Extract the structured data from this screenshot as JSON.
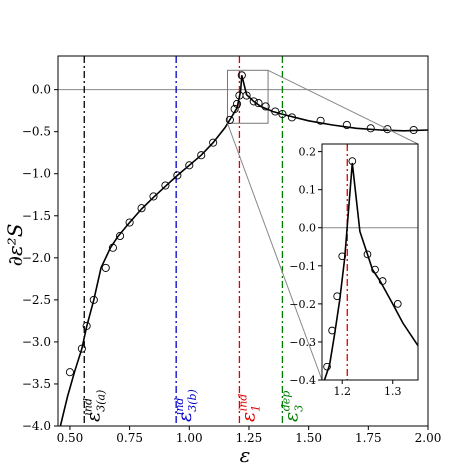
{
  "chart_data": {
    "type": "line",
    "title": "",
    "xlabel": "ε",
    "ylabel": "∂ε²S",
    "xlim": [
      0.45,
      2.0
    ],
    "ylim": [
      -4.0,
      0.4
    ],
    "xticks": [
      "0.50",
      "0.75",
      "1.00",
      "1.25",
      "1.50",
      "1.75",
      "2.00"
    ],
    "xtick_values": [
      0.5,
      0.75,
      1.0,
      1.25,
      1.5,
      1.75,
      2.0
    ],
    "yticks": [
      "−4.0",
      "−3.5",
      "−3.0",
      "−2.5",
      "−2.0",
      "−1.5",
      "−1.0",
      "−0.5",
      "0.0"
    ],
    "ytick_values": [
      -4.0,
      -3.5,
      -3.0,
      -2.5,
      -2.0,
      -1.5,
      -1.0,
      -0.5,
      0.0
    ],
    "grid": false,
    "zero_line": 0.0,
    "series": [
      {
        "line_x": [
          0.46,
          0.49,
          0.52,
          0.55,
          0.57,
          0.6,
          0.63,
          0.67,
          0.7,
          0.75,
          0.8,
          0.85,
          0.9,
          0.95,
          1.0,
          1.05,
          1.1,
          1.15,
          1.2,
          1.215,
          1.22,
          1.24,
          1.27,
          1.3,
          1.35,
          1.4,
          1.5,
          1.6,
          1.7,
          1.8,
          1.9,
          2.0
        ],
        "line_y": [
          -4.0,
          -3.65,
          -3.35,
          -3.08,
          -2.82,
          -2.5,
          -2.12,
          -1.88,
          -1.75,
          -1.58,
          -1.42,
          -1.28,
          -1.15,
          -1.02,
          -0.9,
          -0.78,
          -0.63,
          -0.45,
          -0.22,
          -0.02,
          0.17,
          -0.06,
          -0.14,
          -0.2,
          -0.26,
          -0.3,
          -0.37,
          -0.42,
          -0.46,
          -0.48,
          -0.49,
          -0.48
        ],
        "points_x": [
          0.5,
          0.55,
          0.57,
          0.6,
          0.65,
          0.68,
          0.71,
          0.75,
          0.8,
          0.85,
          0.9,
          0.95,
          1.0,
          1.05,
          1.1,
          1.17,
          1.19,
          1.2,
          1.21,
          1.22,
          1.24,
          1.27,
          1.29,
          1.32,
          1.36,
          1.39,
          1.43,
          1.55,
          1.66,
          1.76,
          1.83,
          1.94
        ],
        "points_y": [
          -3.36,
          -3.08,
          -2.81,
          -2.5,
          -2.12,
          -1.88,
          -1.74,
          -1.58,
          -1.41,
          -1.27,
          -1.14,
          -1.02,
          -0.9,
          -0.78,
          -0.63,
          -0.36,
          -0.23,
          -0.17,
          -0.07,
          0.17,
          -0.07,
          -0.14,
          -0.16,
          -0.2,
          -0.26,
          -0.29,
          -0.33,
          -0.37,
          -0.42,
          -0.46,
          -0.47,
          -0.48
        ],
        "color": "#000000"
      }
    ],
    "vlines": [
      {
        "x": 0.56,
        "color": "#000000",
        "label_main": "ε",
        "label_sup": "ind",
        "label_sub": "3(a)"
      },
      {
        "x": 0.945,
        "color": "#0000cc",
        "label_main": "ε",
        "label_sup": "ind",
        "label_sub": "3(b)"
      },
      {
        "x": 1.21,
        "color": "#e00000",
        "label_main": "ε",
        "label_sup": "ind",
        "label_sub": "1"
      },
      {
        "x": 1.39,
        "color": "#008000",
        "label_main": "ε",
        "label_sup": "dep",
        "label_sub": "3"
      }
    ],
    "zoom_box": {
      "x": [
        1.16,
        1.33
      ],
      "y": [
        -0.4,
        0.23
      ]
    },
    "inset": {
      "xlim": [
        1.16,
        1.35
      ],
      "ylim": [
        -0.4,
        0.22
      ],
      "xticks": [
        "1.2",
        "1.3"
      ],
      "xtick_values": [
        1.2,
        1.3
      ],
      "yticks": [
        "−0.4",
        "−0.3",
        "−0.2",
        "−0.1",
        "0.0",
        "0.1",
        "0.2"
      ],
      "ytick_values": [
        -0.4,
        -0.3,
        -0.2,
        -0.1,
        0.0,
        0.1,
        0.2
      ],
      "vline": {
        "x": 1.21,
        "color": "#e00000"
      },
      "line_x": [
        1.165,
        1.175,
        1.185,
        1.195,
        1.205,
        1.22,
        1.235,
        1.25,
        1.26,
        1.275,
        1.3,
        1.32,
        1.35
      ],
      "line_y": [
        -0.4,
        -0.36,
        -0.28,
        -0.19,
        -0.08,
        0.17,
        -0.01,
        -0.07,
        -0.11,
        -0.14,
        -0.2,
        -0.25,
        -0.31
      ],
      "points_x": [
        1.17,
        1.18,
        1.19,
        1.2,
        1.22,
        1.25,
        1.265,
        1.28,
        1.31
      ],
      "points_y": [
        -0.365,
        -0.27,
        -0.18,
        -0.075,
        0.175,
        -0.07,
        -0.11,
        -0.14,
        -0.2
      ]
    }
  }
}
